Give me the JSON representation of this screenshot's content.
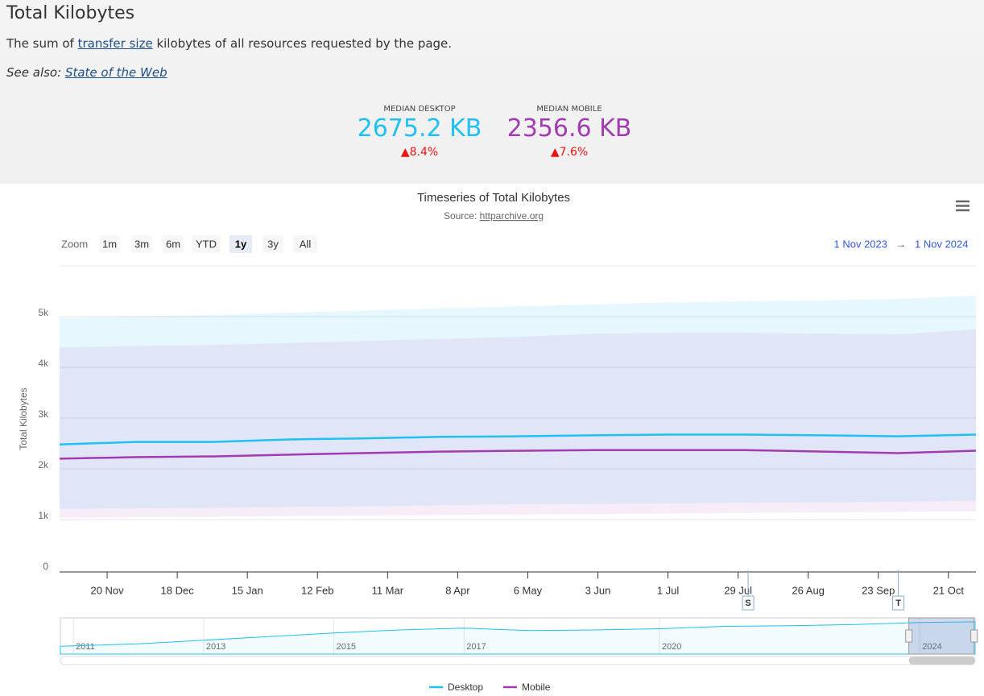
{
  "header": {
    "title": "Total Kilobytes",
    "desc_before": "The sum of ",
    "desc_link": "transfer size",
    "desc_after": " kilobytes of all resources requested by the page.",
    "see_also_label": "See also:",
    "see_also_link": "State of the Web"
  },
  "metrics": [
    {
      "label": "MEDIAN DESKTOP",
      "value": "2675.2 KB",
      "change": "▲8.4%",
      "color": "#1fc1f2"
    },
    {
      "label": "MEDIAN MOBILE",
      "value": "2356.6 KB",
      "change": "▲7.6%",
      "color": "#a23bb2"
    }
  ],
  "zoom": {
    "label": "Zoom",
    "buttons": [
      "1m",
      "3m",
      "6m",
      "YTD",
      "1y",
      "3y",
      "All"
    ],
    "selected_button": 4,
    "range_start": "1 Nov 2023",
    "range_arrow": "→",
    "range_end": "1 Nov 2024"
  },
  "chart_data": {
    "type": "line",
    "title": "Timeseries of Total Kilobytes",
    "subtitle_label": "Source:",
    "subtitle_link": "httparchive.org",
    "y_label": "Total Kilobytes",
    "x": [
      "2023-11-01",
      "2023-12-01",
      "2024-01-01",
      "2024-02-01",
      "2024-03-01",
      "2024-04-01",
      "2024-05-01",
      "2024-06-01",
      "2024-07-01",
      "2024-08-01",
      "2024-09-01",
      "2024-10-01",
      "2024-11-01"
    ],
    "xlim": [
      "2023-11-01",
      "2024-11-01"
    ],
    "xticks": [
      {
        "value": "2023-11-20",
        "label": "20 Nov"
      },
      {
        "value": "2023-12-18",
        "label": "18 Dec"
      },
      {
        "value": "2024-01-15",
        "label": "15 Jan"
      },
      {
        "value": "2024-02-12",
        "label": "12 Feb"
      },
      {
        "value": "2024-03-11",
        "label": "11 Mar"
      },
      {
        "value": "2024-04-08",
        "label": "8 Apr"
      },
      {
        "value": "2024-05-06",
        "label": "6 May"
      },
      {
        "value": "2024-06-03",
        "label": "3 Jun"
      },
      {
        "value": "2024-07-01",
        "label": "1 Jul"
      },
      {
        "value": "2024-07-29",
        "label": "29 Jul"
      },
      {
        "value": "2024-08-26",
        "label": "26 Aug"
      },
      {
        "value": "2024-09-23",
        "label": "23 Sep"
      },
      {
        "value": "2024-10-21",
        "label": "21 Oct"
      }
    ],
    "ylim": [
      0,
      6000
    ],
    "yticks": [
      0,
      {
        "value": 1000,
        "label": "1k"
      },
      {
        "value": 2000,
        "label": "2k"
      },
      {
        "value": 3000,
        "label": "3k"
      },
      {
        "value": 4000,
        "label": "4k"
      },
      {
        "value": 5000,
        "label": "5k"
      }
    ],
    "grid": true,
    "series": [
      {
        "name": "Desktop",
        "color": "#1fc1f2",
        "band_color": "rgba(31,193,242,0.11)",
        "values": [
          2480,
          2530,
          2530,
          2580,
          2600,
          2630,
          2640,
          2660,
          2675,
          2675,
          2660,
          2640,
          2675
        ],
        "low": [
          1210,
          1220,
          1230,
          1250,
          1260,
          1280,
          1300,
          1310,
          1320,
          1330,
          1340,
          1350,
          1370
        ],
        "high": [
          4970,
          5000,
          5030,
          5080,
          5120,
          5160,
          5200,
          5240,
          5280,
          5300,
          5320,
          5350,
          5410
        ]
      },
      {
        "name": "Mobile",
        "color": "#a23bb2",
        "band_color": "rgba(162,59,178,0.09)",
        "values": [
          2200,
          2230,
          2245,
          2280,
          2310,
          2340,
          2355,
          2370,
          2370,
          2370,
          2340,
          2310,
          2357
        ],
        "low": [
          1035,
          1045,
          1055,
          1070,
          1080,
          1090,
          1100,
          1110,
          1120,
          1130,
          1140,
          1150,
          1160
        ],
        "high": [
          4390,
          4420,
          4440,
          4480,
          4520,
          4560,
          4600,
          4660,
          4680,
          4680,
          4660,
          4650,
          4750
        ]
      }
    ],
    "flags": [
      {
        "x": "2024-08-02",
        "label": "S"
      },
      {
        "x": "2024-10-01",
        "label": "T"
      }
    ],
    "navigator": {
      "x": [
        2010.8,
        2011,
        2012,
        2013,
        2014,
        2015,
        2016,
        2017,
        2018,
        2019,
        2020,
        2021,
        2022,
        2023,
        2024,
        2024.85
      ],
      "values": [
        650,
        680,
        850,
        1150,
        1450,
        1750,
        2000,
        2150,
        1950,
        2000,
        2100,
        2300,
        2350,
        2450,
        2620,
        2675
      ],
      "xlim": [
        2010.8,
        2024.85
      ],
      "ylim": [
        0,
        3000
      ],
      "xticks": [
        2011,
        2013,
        2015,
        2017,
        2020,
        2024
      ],
      "color": "#1fc1f2"
    }
  }
}
